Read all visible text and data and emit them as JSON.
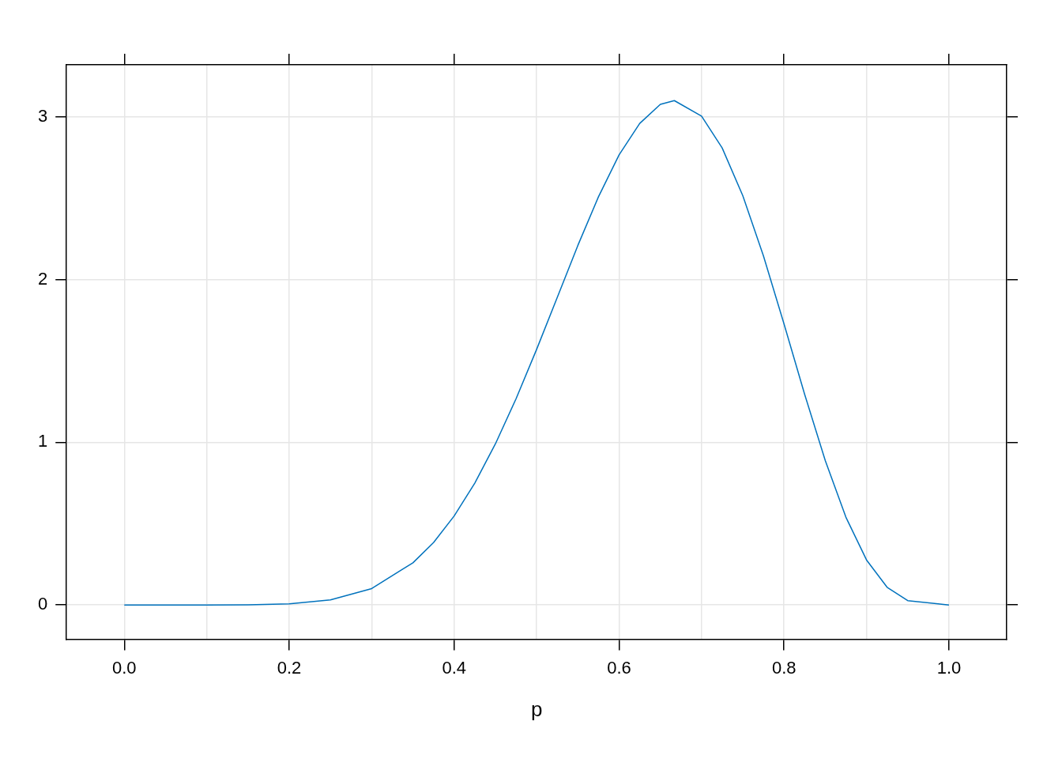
{
  "chart_data": {
    "type": "line",
    "xlabel": "p",
    "x": [
      0,
      0.05,
      0.1,
      0.15,
      0.2,
      0.25,
      0.3,
      0.35,
      0.375,
      0.4,
      0.425,
      0.45,
      0.475,
      0.5,
      0.525,
      0.55,
      0.575,
      0.6,
      0.625,
      0.65,
      0.667,
      0.7,
      0.725,
      0.75,
      0.775,
      0.8,
      0.825,
      0.85,
      0.875,
      0.9,
      0.925,
      0.95,
      1
    ],
    "series": [
      {
        "color": "#0072bd",
        "values": [
          0,
          0,
          0,
          0.001,
          0.007,
          0.031,
          0.101,
          0.259,
          0.384,
          0.547,
          0.749,
          0.99,
          1.267,
          1.571,
          1.89,
          2.21,
          2.509,
          2.767,
          2.96,
          3.077,
          3.1,
          3.005,
          2.809,
          2.516,
          2.146,
          1.727,
          1.295,
          0.888,
          0.54,
          0.277,
          0.109,
          0.027,
          0
        ]
      }
    ],
    "xlim": [
      -0.07,
      1.07
    ],
    "xticks": [
      {
        "value": 0,
        "label": "0.0"
      },
      {
        "value": 0.1,
        "label": null
      },
      {
        "value": 0.2,
        "label": "0.2"
      },
      {
        "value": 0.3,
        "label": null
      },
      {
        "value": 0.4,
        "label": "0.4"
      },
      {
        "value": 0.5,
        "label": null
      },
      {
        "value": 0.6,
        "label": "0.6"
      },
      {
        "value": 0.7,
        "label": null
      },
      {
        "value": 0.8,
        "label": "0.8"
      },
      {
        "value": 0.9,
        "label": null
      },
      {
        "value": 1,
        "label": "1.0"
      }
    ],
    "ylim": [
      -0.21,
      3.32
    ],
    "yticks": [
      0,
      1,
      2,
      3
    ],
    "grid": true,
    "legend": false,
    "marker": "none",
    "line_style": "solid"
  }
}
